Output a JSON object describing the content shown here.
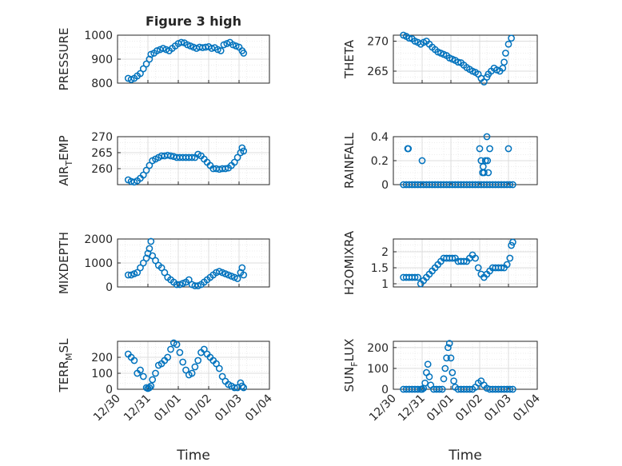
{
  "figure": {
    "title": "Figure 3 high"
  },
  "colors": {
    "marker": "#0072BD",
    "axis": "#262626",
    "grid": "#dcdcdc",
    "minor_grid": "#ececec"
  },
  "chart_data": [
    {
      "id": "pressure",
      "type": "scatter",
      "title": "Figure 3 high",
      "ylabel": "PRESSURE",
      "ylabel_main": "PRESSURE",
      "ylabel_sub": "",
      "ylabel_tail": "",
      "ylim": [
        800,
        1000
      ],
      "yticks": [
        800,
        900,
        1000
      ],
      "xlim": [
        "12/30",
        "01/04"
      ],
      "grid": true,
      "minor_grid": true,
      "series": [
        {
          "x": [
            0.35,
            0.45,
            0.55,
            0.65,
            0.75,
            0.85,
            0.95,
            1.05,
            1.1,
            1.2,
            1.3,
            1.4,
            1.5,
            1.6,
            1.7,
            1.8,
            1.9,
            2.0,
            2.1,
            2.2,
            2.3,
            2.4,
            2.5,
            2.6,
            2.7,
            2.8,
            2.9,
            3.0,
            3.1,
            3.2,
            3.3,
            3.4,
            3.5,
            3.6,
            3.7,
            3.8,
            3.9,
            4.0,
            4.1,
            4.15
          ],
          "y": [
            820,
            815,
            820,
            830,
            840,
            860,
            880,
            900,
            920,
            925,
            935,
            940,
            945,
            940,
            935,
            945,
            955,
            965,
            970,
            968,
            960,
            955,
            950,
            945,
            950,
            948,
            950,
            952,
            945,
            948,
            940,
            935,
            960,
            965,
            970,
            960,
            955,
            950,
            935,
            925
          ]
        }
      ]
    },
    {
      "id": "theta",
      "type": "scatter",
      "title": "",
      "ylabel": "THETA",
      "ylabel_main": "THETA",
      "ylabel_sub": "",
      "ylabel_tail": "",
      "ylim": [
        263,
        271
      ],
      "yticks": [
        265,
        270
      ],
      "xlim": [
        "12/30",
        "01/04"
      ],
      "grid": true,
      "minor_grid": true,
      "series": [
        {
          "x": [
            0.35,
            0.45,
            0.55,
            0.65,
            0.75,
            0.85,
            0.95,
            1.05,
            1.15,
            1.25,
            1.35,
            1.45,
            1.55,
            1.65,
            1.75,
            1.85,
            1.95,
            2.05,
            2.15,
            2.25,
            2.35,
            2.45,
            2.55,
            2.65,
            2.75,
            2.85,
            2.95,
            3.05,
            3.15,
            3.25,
            3.3,
            3.4,
            3.5,
            3.6,
            3.7,
            3.8,
            3.85,
            3.9,
            4.0,
            4.1
          ],
          "y": [
            271,
            270.8,
            270.5,
            270.4,
            270,
            269.8,
            269.5,
            269.8,
            270,
            269.5,
            269,
            268.6,
            268.2,
            268,
            267.8,
            267.6,
            267.2,
            267,
            266.8,
            266.5,
            266.4,
            266,
            265.6,
            265.3,
            265,
            264.8,
            264.5,
            263.8,
            263.2,
            264,
            264.5,
            265,
            265.5,
            265.2,
            265,
            265.5,
            266.5,
            268,
            269.5,
            270.5
          ]
        }
      ]
    },
    {
      "id": "air_temp",
      "type": "scatter",
      "title": "",
      "ylabel": "AIR_TEMP",
      "ylabel_main": "AIR",
      "ylabel_sub": "T",
      "ylabel_tail": "EMP",
      "ylim": [
        255,
        270
      ],
      "yticks": [
        260,
        265,
        270
      ],
      "xlim": [
        "12/30",
        "01/04"
      ],
      "grid": true,
      "minor_grid": true,
      "series": [
        {
          "x": [
            0.35,
            0.45,
            0.55,
            0.65,
            0.75,
            0.85,
            0.95,
            1.05,
            1.15,
            1.25,
            1.35,
            1.45,
            1.55,
            1.65,
            1.75,
            1.85,
            1.95,
            2.05,
            2.15,
            2.25,
            2.35,
            2.45,
            2.55,
            2.65,
            2.75,
            2.85,
            2.95,
            3.05,
            3.15,
            3.25,
            3.35,
            3.45,
            3.55,
            3.65,
            3.75,
            3.85,
            3.95,
            4.05,
            4.1,
            4.15
          ],
          "y": [
            256.5,
            256,
            255.8,
            256.2,
            257,
            258,
            259.5,
            261,
            262.5,
            263,
            263.5,
            264,
            264,
            264.2,
            264,
            263.8,
            263.5,
            263.5,
            263.5,
            263.5,
            263.5,
            263.5,
            263.5,
            264.5,
            264,
            263,
            262,
            261,
            260,
            260,
            259.8,
            260,
            260,
            260.2,
            261,
            262,
            263.5,
            265,
            266.5,
            265.5
          ]
        }
      ]
    },
    {
      "id": "rainfall",
      "type": "scatter",
      "title": "",
      "ylabel": "RAINFALL",
      "ylabel_main": "RAINFALL",
      "ylabel_sub": "",
      "ylabel_tail": "",
      "ylim": [
        0,
        0.4
      ],
      "yticks": [
        0,
        0.2,
        0.4
      ],
      "xlim": [
        "12/30",
        "01/04"
      ],
      "grid": true,
      "minor_grid": true,
      "series": [
        {
          "x": [
            0.35,
            0.45,
            0.55,
            0.65,
            0.75,
            0.85,
            0.95,
            1.05,
            1.15,
            1.25,
            1.35,
            1.45,
            1.55,
            1.65,
            1.75,
            1.85,
            1.95,
            2.05,
            2.15,
            2.25,
            2.35,
            2.45,
            2.55,
            2.65,
            2.75,
            2.85,
            2.95,
            3.05,
            3.15,
            3.25,
            3.35,
            3.45,
            3.55,
            3.65,
            3.75,
            3.85,
            3.95,
            4.05,
            4.15,
            0.5,
            0.52,
            1.0,
            3.0,
            3.05,
            3.1,
            3.12,
            3.15,
            3.2,
            3.25,
            3.27,
            3.3,
            3.35,
            4.0
          ],
          "y": [
            0,
            0,
            0,
            0,
            0,
            0,
            0,
            0,
            0,
            0,
            0,
            0,
            0,
            0,
            0,
            0,
            0,
            0,
            0,
            0,
            0,
            0,
            0,
            0,
            0,
            0,
            0,
            0,
            0,
            0,
            0,
            0,
            0,
            0,
            0,
            0,
            0,
            0,
            0,
            0.3,
            0.3,
            0.2,
            0.3,
            0.2,
            0.1,
            0.15,
            0.1,
            0.2,
            0.4,
            0.2,
            0.1,
            0.3,
            0.3
          ]
        }
      ]
    },
    {
      "id": "mixdepth",
      "type": "scatter",
      "title": "",
      "ylabel": "MIXDEPTH",
      "ylabel_main": "MIXDEPTH",
      "ylabel_sub": "",
      "ylabel_tail": "",
      "ylim": [
        0,
        2000
      ],
      "yticks": [
        0,
        1000,
        2000
      ],
      "xlim": [
        "12/30",
        "01/04"
      ],
      "grid": true,
      "minor_grid": true,
      "series": [
        {
          "x": [
            0.35,
            0.45,
            0.55,
            0.65,
            0.75,
            0.85,
            0.95,
            1.0,
            1.05,
            1.1,
            1.15,
            1.25,
            1.35,
            1.45,
            1.55,
            1.65,
            1.75,
            1.85,
            1.95,
            2.05,
            2.15,
            2.25,
            2.35,
            2.45,
            2.55,
            2.65,
            2.75,
            2.85,
            2.95,
            3.05,
            3.15,
            3.25,
            3.35,
            3.45,
            3.55,
            3.65,
            3.75,
            3.85,
            3.95,
            4.05,
            4.1,
            4.15
          ],
          "y": [
            500,
            500,
            550,
            600,
            800,
            1000,
            1200,
            1400,
            1600,
            1900,
            1300,
            1100,
            900,
            800,
            600,
            400,
            300,
            200,
            100,
            100,
            150,
            200,
            300,
            100,
            50,
            50,
            100,
            200,
            300,
            400,
            500,
            600,
            650,
            600,
            550,
            500,
            450,
            400,
            350,
            600,
            800,
            500
          ]
        }
      ]
    },
    {
      "id": "h2omixra",
      "type": "scatter",
      "title": "",
      "ylabel": "H2OMIXRA",
      "ylabel_main": "H2OMIXRA",
      "ylabel_sub": "",
      "ylabel_tail": "",
      "ylim": [
        0.9,
        2.4
      ],
      "yticks": [
        1,
        1.5,
        2
      ],
      "xlim": [
        "12/30",
        "01/04"
      ],
      "grid": true,
      "minor_grid": true,
      "series": [
        {
          "x": [
            0.35,
            0.45,
            0.55,
            0.65,
            0.75,
            0.85,
            0.95,
            1.05,
            1.15,
            1.25,
            1.35,
            1.45,
            1.55,
            1.65,
            1.75,
            1.85,
            1.95,
            2.05,
            2.15,
            2.25,
            2.35,
            2.45,
            2.55,
            2.65,
            2.75,
            2.85,
            2.95,
            3.05,
            3.15,
            3.25,
            3.35,
            3.45,
            3.55,
            3.65,
            3.75,
            3.85,
            3.95,
            4.05,
            4.1,
            4.15
          ],
          "y": [
            1.2,
            1.2,
            1.2,
            1.2,
            1.2,
            1.2,
            1.0,
            1.1,
            1.2,
            1.3,
            1.4,
            1.5,
            1.6,
            1.7,
            1.8,
            1.8,
            1.8,
            1.8,
            1.8,
            1.7,
            1.7,
            1.7,
            1.7,
            1.8,
            1.9,
            1.8,
            1.5,
            1.3,
            1.2,
            1.3,
            1.4,
            1.5,
            1.5,
            1.5,
            1.5,
            1.5,
            1.6,
            1.8,
            2.2,
            2.3
          ]
        }
      ]
    },
    {
      "id": "terr_msl",
      "type": "scatter",
      "title": "",
      "ylabel": "TERR_MSL",
      "ylabel_main": "TERR",
      "ylabel_sub": "M",
      "ylabel_tail": "SL",
      "ylim": [
        0,
        300
      ],
      "yticks": [
        0,
        100,
        200
      ],
      "xlim": [
        "12/30",
        "01/04"
      ],
      "grid": true,
      "minor_grid": true,
      "series": [
        {
          "x": [
            0.35,
            0.45,
            0.55,
            0.65,
            0.75,
            0.85,
            0.95,
            1.0,
            1.05,
            1.1,
            1.15,
            1.25,
            1.35,
            1.45,
            1.55,
            1.65,
            1.75,
            1.85,
            1.95,
            2.05,
            2.15,
            2.25,
            2.35,
            2.45,
            2.55,
            2.65,
            2.75,
            2.85,
            2.95,
            3.05,
            3.15,
            3.25,
            3.35,
            3.45,
            3.55,
            3.65,
            3.75,
            3.85,
            3.95,
            4.05,
            4.1,
            4.15
          ],
          "y": [
            220,
            200,
            180,
            100,
            120,
            80,
            10,
            5,
            10,
            20,
            60,
            100,
            150,
            160,
            180,
            200,
            250,
            290,
            280,
            230,
            170,
            120,
            90,
            100,
            140,
            180,
            230,
            250,
            220,
            200,
            180,
            160,
            130,
            80,
            50,
            30,
            20,
            10,
            10,
            40,
            20,
            10
          ]
        }
      ]
    },
    {
      "id": "sun_flux",
      "type": "scatter",
      "title": "",
      "ylabel": "SUN_FLUX",
      "ylabel_main": "SUN",
      "ylabel_sub": "F",
      "ylabel_tail": "LUX",
      "ylim": [
        0,
        230
      ],
      "yticks": [
        0,
        100,
        200
      ],
      "xlim": [
        "12/30",
        "01/04"
      ],
      "grid": true,
      "minor_grid": true,
      "series": [
        {
          "x": [
            0.35,
            0.45,
            0.55,
            0.65,
            0.75,
            0.85,
            0.95,
            1.0,
            1.05,
            1.1,
            1.15,
            1.2,
            1.25,
            1.3,
            1.4,
            1.5,
            1.6,
            1.7,
            1.75,
            1.8,
            1.85,
            1.9,
            1.95,
            2.0,
            2.05,
            2.1,
            2.15,
            2.25,
            2.35,
            2.45,
            2.55,
            2.65,
            2.75,
            2.85,
            2.95,
            3.05,
            3.15,
            3.25,
            3.35,
            3.45,
            3.55,
            3.65,
            3.75,
            3.85,
            3.95,
            4.05,
            4.15
          ],
          "y": [
            0,
            0,
            0,
            0,
            0,
            0,
            0,
            0,
            5,
            30,
            80,
            120,
            60,
            20,
            0,
            0,
            0,
            0,
            50,
            100,
            150,
            200,
            220,
            150,
            80,
            40,
            10,
            0,
            0,
            0,
            0,
            0,
            0,
            10,
            30,
            40,
            20,
            5,
            0,
            0,
            0,
            0,
            0,
            0,
            0,
            0,
            0
          ]
        }
      ]
    }
  ],
  "shared_x": {
    "ticks": [
      "12/30",
      "12/31",
      "01/01",
      "01/02",
      "01/03",
      "01/04"
    ],
    "xlabel": "Time"
  }
}
